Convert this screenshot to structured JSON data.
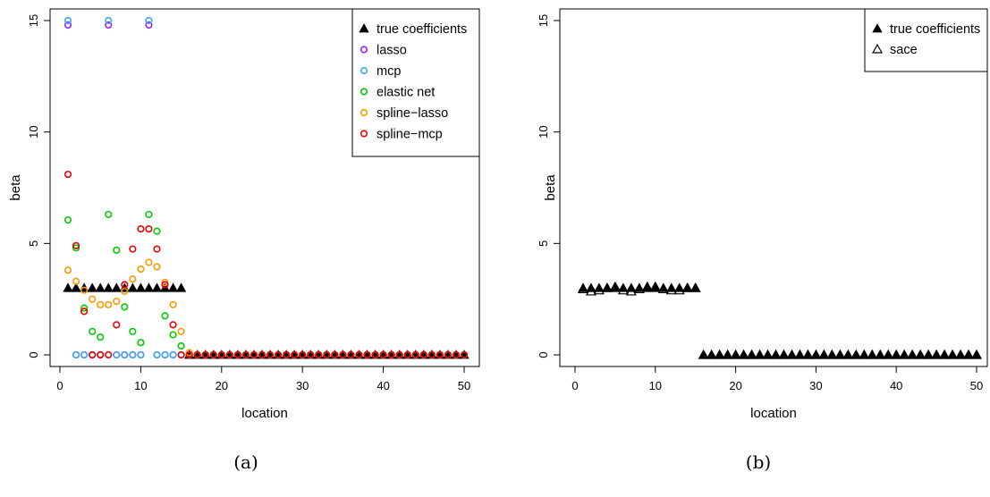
{
  "chart_data": [
    {
      "type": "scatter",
      "caption": "(a)",
      "xlabel": "location",
      "ylabel": "beta",
      "xlim": [
        0,
        51
      ],
      "ylim": [
        -0.6,
        15.6
      ],
      "x_ticks": [
        0,
        10,
        20,
        30,
        40,
        50
      ],
      "y_ticks": [
        0,
        5,
        10,
        15
      ],
      "grid": false,
      "legend_position": "top-right",
      "legend": [
        {
          "label": "true coefficients",
          "marker": "filled-triangle",
          "color": "#000000"
        },
        {
          "label": "lasso",
          "marker": "circle",
          "color": "#a020f0"
        },
        {
          "label": "mcp",
          "marker": "circle",
          "color": "#3fa9f5"
        },
        {
          "label": "elastic net",
          "marker": "circle",
          "color": "#00cc00"
        },
        {
          "label": "spline−lasso",
          "marker": "circle",
          "color": "#ff9900"
        },
        {
          "label": "spline−mcp",
          "marker": "circle",
          "color": "#ee0000"
        }
      ],
      "series": [
        {
          "name": "true coefficients",
          "marker": "filled-triangle",
          "color": "#000000",
          "x": [
            1,
            2,
            3,
            4,
            5,
            6,
            7,
            8,
            9,
            10,
            11,
            12,
            13,
            14,
            15,
            16,
            17,
            18,
            19,
            20,
            21,
            22,
            23,
            24,
            25,
            26,
            27,
            28,
            29,
            30,
            31,
            32,
            33,
            34,
            35,
            36,
            37,
            38,
            39,
            40,
            41,
            42,
            43,
            44,
            45,
            46,
            47,
            48,
            49,
            50
          ],
          "y": [
            3,
            3,
            3,
            3,
            3,
            3,
            3,
            3,
            3,
            3,
            3,
            3,
            3,
            3,
            3,
            0,
            0,
            0,
            0,
            0,
            0,
            0,
            0,
            0,
            0,
            0,
            0,
            0,
            0,
            0,
            0,
            0,
            0,
            0,
            0,
            0,
            0,
            0,
            0,
            0,
            0,
            0,
            0,
            0,
            0,
            0,
            0,
            0,
            0,
            0
          ]
        },
        {
          "name": "lasso",
          "marker": "circle",
          "color": "#a020f0",
          "x": [
            1,
            2,
            3,
            4,
            5,
            6,
            7,
            8,
            9,
            10,
            11,
            12,
            13,
            14,
            15,
            16,
            17,
            18,
            19,
            20,
            21,
            22,
            23,
            24,
            25,
            26,
            27,
            28,
            29,
            30,
            31,
            32,
            33,
            34,
            35,
            36,
            37,
            38,
            39,
            40,
            41,
            42,
            43,
            44,
            45,
            46,
            47,
            48,
            49,
            50
          ],
          "y": [
            14.8,
            0,
            0,
            0,
            0,
            14.8,
            0,
            0,
            0,
            0,
            14.8,
            0,
            0,
            0,
            0,
            0,
            0,
            0,
            0,
            0,
            0,
            0,
            0,
            0,
            0,
            0,
            0,
            0,
            0,
            0,
            0,
            0,
            0,
            0,
            0,
            0,
            0,
            0,
            0,
            0,
            0,
            0,
            0,
            0,
            0,
            0,
            0,
            0,
            0,
            0
          ]
        },
        {
          "name": "mcp",
          "marker": "circle",
          "color": "#3fa9f5",
          "x": [
            1,
            2,
            3,
            4,
            5,
            6,
            7,
            8,
            9,
            10,
            11,
            12,
            13,
            14,
            15,
            16,
            17,
            18,
            19,
            20,
            21,
            22,
            23,
            24,
            25,
            26,
            27,
            28,
            29,
            30,
            31,
            32,
            33,
            34,
            35,
            36,
            37,
            38,
            39,
            40,
            41,
            42,
            43,
            44,
            45,
            46,
            47,
            48,
            49,
            50
          ],
          "y": [
            15,
            0,
            0,
            0,
            0,
            15,
            0,
            0,
            0,
            0,
            15,
            0,
            0,
            0,
            0,
            0,
            0,
            0,
            0,
            0,
            0,
            0,
            0,
            0,
            0,
            0,
            0,
            0,
            0,
            0,
            0,
            0,
            0,
            0,
            0,
            0,
            0,
            0,
            0,
            0,
            0,
            0,
            0,
            0,
            0,
            0,
            0,
            0,
            0,
            0
          ]
        },
        {
          "name": "elastic net",
          "marker": "circle",
          "color": "#00cc00",
          "x": [
            1,
            2,
            3,
            4,
            5,
            6,
            7,
            8,
            9,
            10,
            11,
            12,
            13,
            14,
            15,
            16,
            17,
            18,
            19,
            20,
            21,
            22,
            23,
            24,
            25,
            26,
            27,
            28,
            29,
            30,
            31,
            32,
            33,
            34,
            35,
            36,
            37,
            38,
            39,
            40,
            41,
            42,
            43,
            44,
            45,
            46,
            47,
            48,
            49,
            50
          ],
          "y": [
            6.05,
            4.8,
            2.1,
            1.05,
            0.8,
            6.3,
            4.7,
            2.15,
            1.05,
            0.55,
            6.3,
            5.55,
            1.75,
            0.9,
            0.4,
            0,
            0,
            0,
            0,
            0,
            0,
            0,
            0,
            0,
            0,
            0,
            0,
            0,
            0,
            0,
            0,
            0,
            0,
            0,
            0,
            0,
            0,
            0,
            0,
            0,
            0,
            0,
            0,
            0,
            0,
            0,
            0,
            0,
            0,
            0
          ]
        },
        {
          "name": "spline−lasso",
          "marker": "circle",
          "color": "#ff9900",
          "x": [
            1,
            2,
            3,
            4,
            5,
            6,
            7,
            8,
            9,
            10,
            11,
            12,
            13,
            14,
            15,
            16,
            17,
            18,
            19,
            20,
            21,
            22,
            23,
            24,
            25,
            26,
            27,
            28,
            29,
            30,
            31,
            32,
            33,
            34,
            35,
            36,
            37,
            38,
            39,
            40,
            41,
            42,
            43,
            44,
            45,
            46,
            47,
            48,
            49,
            50
          ],
          "y": [
            3.8,
            3.3,
            2.9,
            2.5,
            2.25,
            2.25,
            2.4,
            2.85,
            3.4,
            3.85,
            4.15,
            3.95,
            3.25,
            2.25,
            1.05,
            0.1,
            0,
            0,
            0,
            0,
            0,
            0,
            0,
            0,
            0,
            0,
            0,
            0,
            0,
            0,
            0,
            0,
            0,
            0,
            0,
            0,
            0,
            0,
            0,
            0,
            0,
            0,
            0,
            0,
            0,
            0,
            0,
            0,
            0,
            0
          ]
        },
        {
          "name": "spline−mcp",
          "marker": "circle",
          "color": "#ee0000",
          "x": [
            1,
            2,
            3,
            4,
            5,
            6,
            7,
            8,
            9,
            10,
            11,
            12,
            13,
            14,
            15,
            16,
            17,
            18,
            19,
            20,
            21,
            22,
            23,
            24,
            25,
            26,
            27,
            28,
            29,
            30,
            31,
            32,
            33,
            34,
            35,
            36,
            37,
            38,
            39,
            40,
            41,
            42,
            43,
            44,
            45,
            46,
            47,
            48,
            49,
            50
          ],
          "y": [
            8.1,
            4.9,
            1.95,
            0,
            0,
            0,
            1.35,
            3.15,
            4.75,
            5.65,
            5.65,
            4.75,
            3.15,
            1.35,
            0,
            0,
            0,
            0,
            0,
            0,
            0,
            0,
            0,
            0,
            0,
            0,
            0,
            0,
            0,
            0,
            0,
            0,
            0,
            0,
            0,
            0,
            0,
            0,
            0,
            0,
            0,
            0,
            0,
            0,
            0,
            0,
            0,
            0,
            0,
            0
          ]
        }
      ]
    },
    {
      "type": "scatter",
      "caption": "(b)",
      "xlabel": "location",
      "ylabel": "beta",
      "xlim": [
        -1,
        51
      ],
      "ylim": [
        -0.6,
        15.6
      ],
      "x_ticks": [
        0,
        10,
        20,
        30,
        40,
        50
      ],
      "y_ticks": [
        0,
        5,
        10,
        15
      ],
      "grid": false,
      "legend_position": "top-right",
      "legend": [
        {
          "label": "true coefficients",
          "marker": "filled-triangle",
          "color": "#000000"
        },
        {
          "label": "sace",
          "marker": "open-triangle",
          "color": "#000000"
        }
      ],
      "series": [
        {
          "name": "true coefficients",
          "marker": "filled-triangle",
          "color": "#000000",
          "x": [
            1,
            2,
            3,
            4,
            5,
            6,
            7,
            8,
            9,
            10,
            11,
            12,
            13,
            14,
            15,
            16,
            17,
            18,
            19,
            20,
            21,
            22,
            23,
            24,
            25,
            26,
            27,
            28,
            29,
            30,
            31,
            32,
            33,
            34,
            35,
            36,
            37,
            38,
            39,
            40,
            41,
            42,
            43,
            44,
            45,
            46,
            47,
            48,
            49,
            50
          ],
          "y": [
            3,
            3,
            3,
            3,
            3,
            3,
            3,
            3,
            3,
            3,
            3,
            3,
            3,
            3,
            3,
            0,
            0,
            0,
            0,
            0,
            0,
            0,
            0,
            0,
            0,
            0,
            0,
            0,
            0,
            0,
            0,
            0,
            0,
            0,
            0,
            0,
            0,
            0,
            0,
            0,
            0,
            0,
            0,
            0,
            0,
            0,
            0,
            0,
            0,
            0
          ]
        },
        {
          "name": "sace",
          "marker": "open-triangle",
          "color": "#000000",
          "x": [
            1,
            2,
            3,
            4,
            5,
            6,
            7,
            8,
            9,
            10,
            11,
            12,
            13,
            14,
            15,
            16,
            17,
            18,
            19,
            20,
            21,
            22,
            23,
            24,
            25,
            26,
            27,
            28,
            29,
            30,
            31,
            32,
            33,
            34,
            35,
            36,
            37,
            38,
            39,
            40,
            41,
            42,
            43,
            44,
            45,
            46,
            47,
            48,
            49,
            50
          ],
          "y": [
            2.95,
            2.85,
            2.9,
            3.0,
            3.05,
            2.9,
            2.85,
            2.95,
            3.05,
            3.05,
            2.95,
            2.9,
            2.9,
            3.0,
            3.0,
            0,
            0,
            0,
            0,
            0,
            0,
            0,
            0,
            0,
            0,
            0,
            0,
            0,
            0,
            0,
            0,
            0,
            0,
            0,
            0,
            0,
            0,
            0,
            0,
            0,
            0,
            0,
            0,
            0,
            0,
            0,
            0,
            0,
            0,
            0
          ]
        }
      ]
    }
  ]
}
